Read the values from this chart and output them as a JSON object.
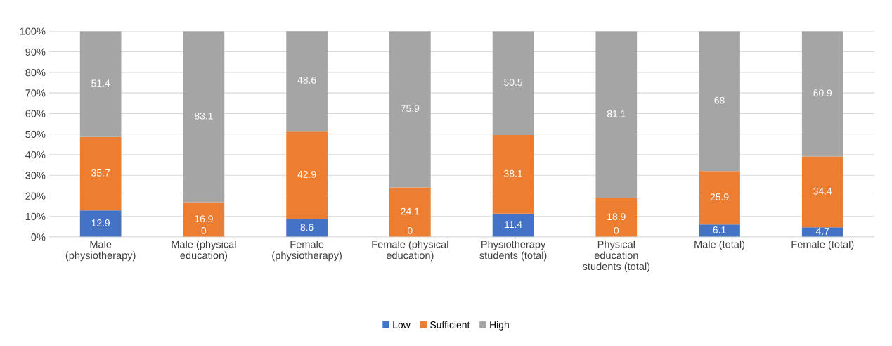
{
  "chart_data": {
    "type": "bar",
    "stacked": true,
    "categories": [
      "Male\n(physiotherapy)",
      "Male (physical\neducation)",
      "Female\n(physiotherapy)",
      "Female (physical\neducation)",
      "Physiotherapy\nstudents (total)",
      "Physical\neducation\nstudents (total)",
      "Male (total)",
      "Female (total)"
    ],
    "series": [
      {
        "name": "Low",
        "color": "#4472c4",
        "values": [
          12.9,
          0,
          8.6,
          0,
          11.4,
          0,
          6.1,
          4.7
        ]
      },
      {
        "name": "Sufficient",
        "color": "#ed7d31",
        "values": [
          35.7,
          16.9,
          42.9,
          24.1,
          38.1,
          18.9,
          25.9,
          34.4
        ]
      },
      {
        "name": "High",
        "color": "#a5a5a5",
        "values": [
          51.4,
          83.1,
          48.6,
          75.9,
          50.5,
          81.1,
          68,
          60.9
        ]
      }
    ],
    "ylim": [
      0,
      100
    ],
    "yticks": [
      {
        "value": 0,
        "label": "0%"
      },
      {
        "value": 10,
        "label": "10%"
      },
      {
        "value": 20,
        "label": "20%"
      },
      {
        "value": 30,
        "label": "30%"
      },
      {
        "value": 40,
        "label": "40%"
      },
      {
        "value": 50,
        "label": "50%"
      },
      {
        "value": 60,
        "label": "60%"
      },
      {
        "value": 70,
        "label": "70%"
      },
      {
        "value": 80,
        "label": "80%"
      },
      {
        "value": 90,
        "label": "90%"
      },
      {
        "value": 100,
        "label": "100%"
      }
    ],
    "grid": "y",
    "legend": "bottom",
    "data_labels": true
  }
}
